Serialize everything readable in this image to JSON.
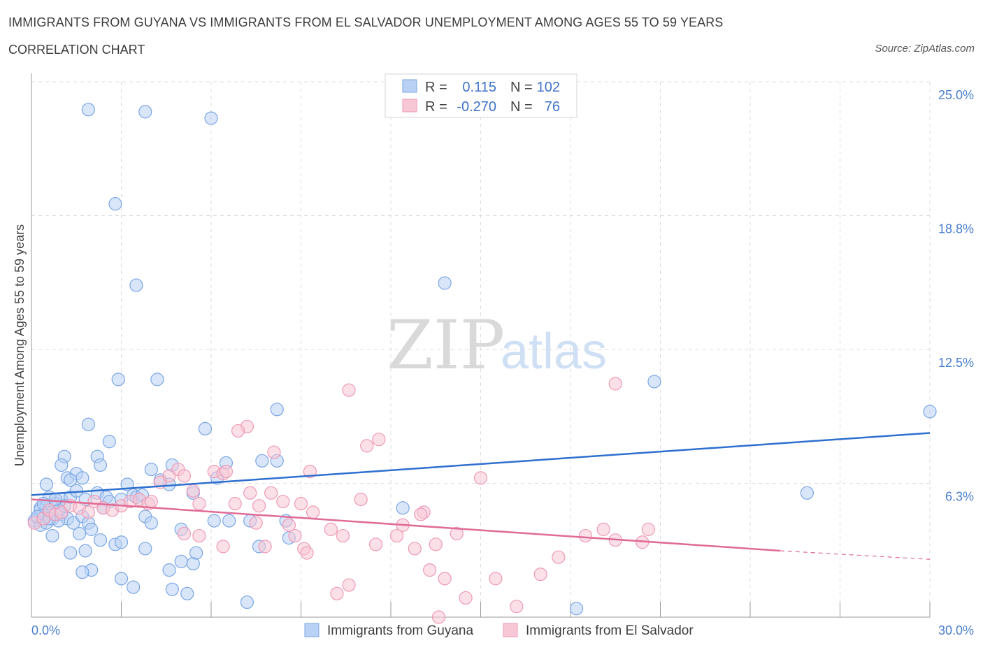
{
  "header": {
    "title": "IMMIGRANTS FROM GUYANA VS IMMIGRANTS FROM EL SALVADOR UNEMPLOYMENT AMONG AGES 55 TO 59 YEARS",
    "subtitle": "CORRELATION CHART",
    "source": "Source: ZipAtlas.com"
  },
  "watermark": {
    "zip": "ZIP",
    "atlas": "atlas"
  },
  "colors": {
    "guyana_fill": "#b9d1f4",
    "guyana_stroke": "#7aa6e6",
    "guyana_line": "#2f6fcf",
    "elsalvador_fill": "#f7c7d6",
    "elsalvador_stroke": "#ee9ab5",
    "elsalvador_line": "#e06b95",
    "grid": "#dcdcdc",
    "tick_text": "#4a7fd0"
  },
  "legend": {
    "rows": [
      {
        "r_label": "R =",
        "r_value": "0.115",
        "n_label": "N =",
        "n_value": "102",
        "series": "guyana"
      },
      {
        "r_label": "R =",
        "r_value": "-0.270",
        "n_label": "N =",
        "n_value": "76",
        "series": "elsalvador"
      }
    ],
    "bottom": [
      "Immigrants from Guyana",
      "Immigrants from El Salvador"
    ]
  },
  "chart_data": {
    "type": "scatter",
    "title": "IMMIGRANTS FROM GUYANA VS IMMIGRANTS FROM EL SALVADOR UNEMPLOYMENT AMONG AGES 55 TO 59 YEARS",
    "subtitle": "CORRELATION CHART",
    "xlabel": "",
    "ylabel": "Unemployment Among Ages 55 to 59 years",
    "xlim": [
      0,
      30
    ],
    "ylim": [
      0,
      25
    ],
    "x_tick_labels": [
      {
        "value": 0,
        "label": "0.0%"
      },
      {
        "value": 30,
        "label": "30.0%"
      }
    ],
    "y_tick_labels": [
      {
        "value": 25.0,
        "label": "25.0%"
      },
      {
        "value": 18.75,
        "label": "18.8%"
      },
      {
        "value": 12.5,
        "label": "12.5%"
      },
      {
        "value": 6.25,
        "label": "6.3%"
      }
    ],
    "x_minor_ticks": [
      3,
      6,
      9,
      12,
      15,
      18,
      21,
      24,
      27,
      30
    ],
    "series": [
      {
        "name": "Immigrants from Guyana",
        "key": "guyana",
        "R": 0.115,
        "N": 102,
        "trend": {
          "x": [
            0,
            30
          ],
          "y": [
            5.7,
            8.6
          ]
        },
        "points": [
          [
            1.9,
            23.7
          ],
          [
            3.8,
            23.6
          ],
          [
            6.0,
            23.3
          ],
          [
            2.8,
            19.3
          ],
          [
            3.5,
            15.5
          ],
          [
            13.8,
            15.6
          ],
          [
            2.9,
            11.1
          ],
          [
            4.2,
            11.1
          ],
          [
            20.8,
            11.0
          ],
          [
            12.4,
            5.1
          ],
          [
            30.0,
            9.6
          ],
          [
            25.9,
            5.8
          ],
          [
            8.2,
            9.7
          ],
          [
            1.9,
            9.0
          ],
          [
            5.8,
            8.8
          ],
          [
            2.6,
            8.2
          ],
          [
            1.1,
            7.5
          ],
          [
            2.2,
            7.5
          ],
          [
            1.0,
            7.1
          ],
          [
            2.3,
            7.1
          ],
          [
            4.0,
            6.9
          ],
          [
            4.7,
            7.1
          ],
          [
            6.5,
            7.2
          ],
          [
            7.7,
            7.3
          ],
          [
            8.2,
            7.3
          ],
          [
            1.2,
            6.5
          ],
          [
            1.5,
            6.7
          ],
          [
            1.7,
            6.5
          ],
          [
            0.5,
            6.2
          ],
          [
            1.3,
            6.4
          ],
          [
            3.2,
            6.2
          ],
          [
            4.6,
            6.2
          ],
          [
            5.4,
            5.8
          ],
          [
            6.2,
            6.5
          ],
          [
            4.3,
            6.4
          ],
          [
            0.6,
            5.6
          ],
          [
            1.0,
            5.5
          ],
          [
            1.3,
            5.6
          ],
          [
            1.8,
            5.5
          ],
          [
            2.2,
            5.8
          ],
          [
            2.5,
            5.6
          ],
          [
            3.0,
            5.5
          ],
          [
            3.4,
            5.7
          ],
          [
            0.3,
            5.1
          ],
          [
            0.5,
            5.2
          ],
          [
            0.8,
            5.3
          ],
          [
            0.9,
            5.0
          ],
          [
            0.7,
            4.8
          ],
          [
            0.4,
            4.8
          ],
          [
            0.2,
            4.6
          ],
          [
            0.1,
            4.5
          ],
          [
            0.3,
            4.3
          ],
          [
            0.7,
            4.6
          ],
          [
            1.0,
            4.8
          ],
          [
            1.2,
            4.6
          ],
          [
            1.4,
            4.4
          ],
          [
            1.7,
            4.7
          ],
          [
            1.9,
            4.4
          ],
          [
            2.6,
            5.4
          ],
          [
            3.5,
            5.6
          ],
          [
            3.8,
            4.7
          ],
          [
            4.0,
            4.4
          ],
          [
            6.1,
            4.5
          ],
          [
            6.6,
            4.5
          ],
          [
            7.3,
            4.5
          ],
          [
            8.5,
            4.5
          ],
          [
            2.0,
            4.1
          ],
          [
            2.3,
            3.6
          ],
          [
            2.8,
            3.4
          ],
          [
            0.7,
            3.8
          ],
          [
            1.6,
            3.9
          ],
          [
            5.0,
            4.1
          ],
          [
            3.0,
            3.5
          ],
          [
            3.8,
            3.2
          ],
          [
            7.6,
            3.3
          ],
          [
            8.6,
            3.7
          ],
          [
            1.3,
            3.0
          ],
          [
            1.8,
            3.1
          ],
          [
            2.0,
            2.2
          ],
          [
            1.7,
            2.1
          ],
          [
            3.0,
            1.8
          ],
          [
            3.4,
            1.4
          ],
          [
            4.6,
            2.2
          ],
          [
            5.0,
            2.6
          ],
          [
            5.4,
            2.5
          ],
          [
            5.5,
            3.0
          ],
          [
            4.7,
            1.3
          ],
          [
            5.2,
            1.1
          ],
          [
            7.2,
            0.7
          ],
          [
            18.2,
            0.4
          ],
          [
            0.3,
            5.0
          ],
          [
            0.6,
            4.9
          ],
          [
            1.1,
            5.2
          ],
          [
            0.9,
            4.5
          ],
          [
            2.4,
            5.1
          ],
          [
            3.7,
            5.7
          ],
          [
            0.2,
            4.7
          ],
          [
            1.5,
            5.9
          ],
          [
            0.8,
            5.5
          ],
          [
            0.4,
            5.3
          ],
          [
            0.5,
            4.4
          ],
          [
            0.6,
            4.6
          ]
        ]
      },
      {
        "name": "Immigrants from El Salvador",
        "key": "elsalvador",
        "R": -0.27,
        "N": 76,
        "trend": {
          "x": [
            0,
            25
          ],
          "y": [
            5.5,
            3.1
          ]
        },
        "trend_dashed": {
          "x": [
            25,
            30
          ],
          "y": [
            3.1,
            2.7
          ]
        },
        "points": [
          [
            0.1,
            4.4
          ],
          [
            0.4,
            4.6
          ],
          [
            0.6,
            5.0
          ],
          [
            0.8,
            4.8
          ],
          [
            1.0,
            4.9
          ],
          [
            1.3,
            5.2
          ],
          [
            1.6,
            5.1
          ],
          [
            1.9,
            4.9
          ],
          [
            2.1,
            5.4
          ],
          [
            2.4,
            5.1
          ],
          [
            2.7,
            5.0
          ],
          [
            3.0,
            5.2
          ],
          [
            3.3,
            5.4
          ],
          [
            3.6,
            5.5
          ],
          [
            3.9,
            5.3
          ],
          [
            4.3,
            6.3
          ],
          [
            4.6,
            6.6
          ],
          [
            4.9,
            6.9
          ],
          [
            5.1,
            6.6
          ],
          [
            5.4,
            5.9
          ],
          [
            5.6,
            5.3
          ],
          [
            6.1,
            6.8
          ],
          [
            6.4,
            6.7
          ],
          [
            6.8,
            5.3
          ],
          [
            7.3,
            5.8
          ],
          [
            7.6,
            5.2
          ],
          [
            8.0,
            5.8
          ],
          [
            8.4,
            5.4
          ],
          [
            9.0,
            5.3
          ],
          [
            9.4,
            4.9
          ],
          [
            10.0,
            4.1
          ],
          [
            10.4,
            3.8
          ],
          [
            11.0,
            5.5
          ],
          [
            11.5,
            3.4
          ],
          [
            12.2,
            3.8
          ],
          [
            13.1,
            4.9
          ],
          [
            13.5,
            3.4
          ],
          [
            14.2,
            3.9
          ],
          [
            15.0,
            6.5
          ],
          [
            10.6,
            10.6
          ],
          [
            7.2,
            8.9
          ],
          [
            6.9,
            8.7
          ],
          [
            11.2,
            8.0
          ],
          [
            11.6,
            8.3
          ],
          [
            8.1,
            7.7
          ],
          [
            9.3,
            6.8
          ],
          [
            6.5,
            6.8
          ],
          [
            4.0,
            5.4
          ],
          [
            5.1,
            3.9
          ],
          [
            5.6,
            3.8
          ],
          [
            6.4,
            3.3
          ],
          [
            7.5,
            4.4
          ],
          [
            7.8,
            3.3
          ],
          [
            8.6,
            4.3
          ],
          [
            8.8,
            3.8
          ],
          [
            9.1,
            3.2
          ],
          [
            9.2,
            3.0
          ],
          [
            10.2,
            1.1
          ],
          [
            10.6,
            1.5
          ],
          [
            12.4,
            4.3
          ],
          [
            12.8,
            3.2
          ],
          [
            13.0,
            4.8
          ],
          [
            13.3,
            2.2
          ],
          [
            13.8,
            1.8
          ],
          [
            14.5,
            0.9
          ],
          [
            15.5,
            1.8
          ],
          [
            16.2,
            0.5
          ],
          [
            17.0,
            2.0
          ],
          [
            17.6,
            2.8
          ],
          [
            18.5,
            3.8
          ],
          [
            19.1,
            4.1
          ],
          [
            19.5,
            3.6
          ],
          [
            20.4,
            3.5
          ],
          [
            20.6,
            4.1
          ],
          [
            19.5,
            10.9
          ],
          [
            13.6,
            0.0
          ]
        ]
      }
    ]
  }
}
